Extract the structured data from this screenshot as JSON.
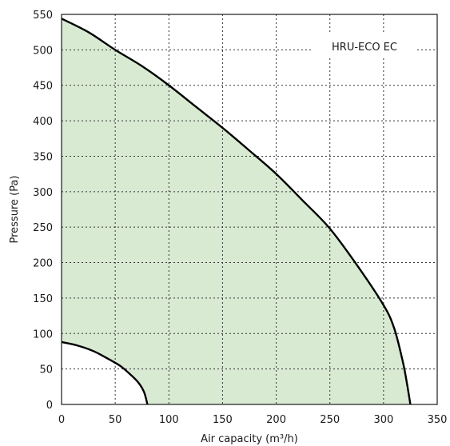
{
  "chart_data": {
    "type": "area",
    "title": "",
    "xlabel": "Air capacity (m³/h)",
    "ylabel": "Pressure (Pa)",
    "xlim": [
      0,
      350
    ],
    "ylim": [
      0,
      550
    ],
    "x_ticks": [
      0,
      50,
      100,
      150,
      200,
      250,
      300,
      350
    ],
    "y_ticks": [
      0,
      50,
      100,
      150,
      200,
      250,
      300,
      350,
      400,
      450,
      500,
      550
    ],
    "grid": true,
    "grid_style": "dotted",
    "legend_placement": "top-right",
    "legend_text": "HRU-ECO EC",
    "fill_color": "#d9ead3",
    "line_color": "#000000",
    "series": [
      {
        "role": "upper-boundary",
        "points": [
          [
            0,
            544
          ],
          [
            25,
            525
          ],
          [
            50,
            500
          ],
          [
            75,
            477
          ],
          [
            100,
            450
          ],
          [
            125,
            420
          ],
          [
            150,
            390
          ],
          [
            175,
            358
          ],
          [
            200,
            325
          ],
          [
            225,
            287
          ],
          [
            250,
            248
          ],
          [
            275,
            197
          ],
          [
            300,
            140
          ],
          [
            310,
            107
          ],
          [
            318,
            60
          ],
          [
            322,
            28
          ],
          [
            325,
            0
          ]
        ]
      },
      {
        "role": "lower-boundary",
        "points": [
          [
            0,
            88
          ],
          [
            15,
            83
          ],
          [
            30,
            75
          ],
          [
            45,
            63
          ],
          [
            55,
            54
          ],
          [
            65,
            41
          ],
          [
            72,
            30
          ],
          [
            77,
            17
          ],
          [
            80,
            0
          ]
        ]
      }
    ]
  }
}
